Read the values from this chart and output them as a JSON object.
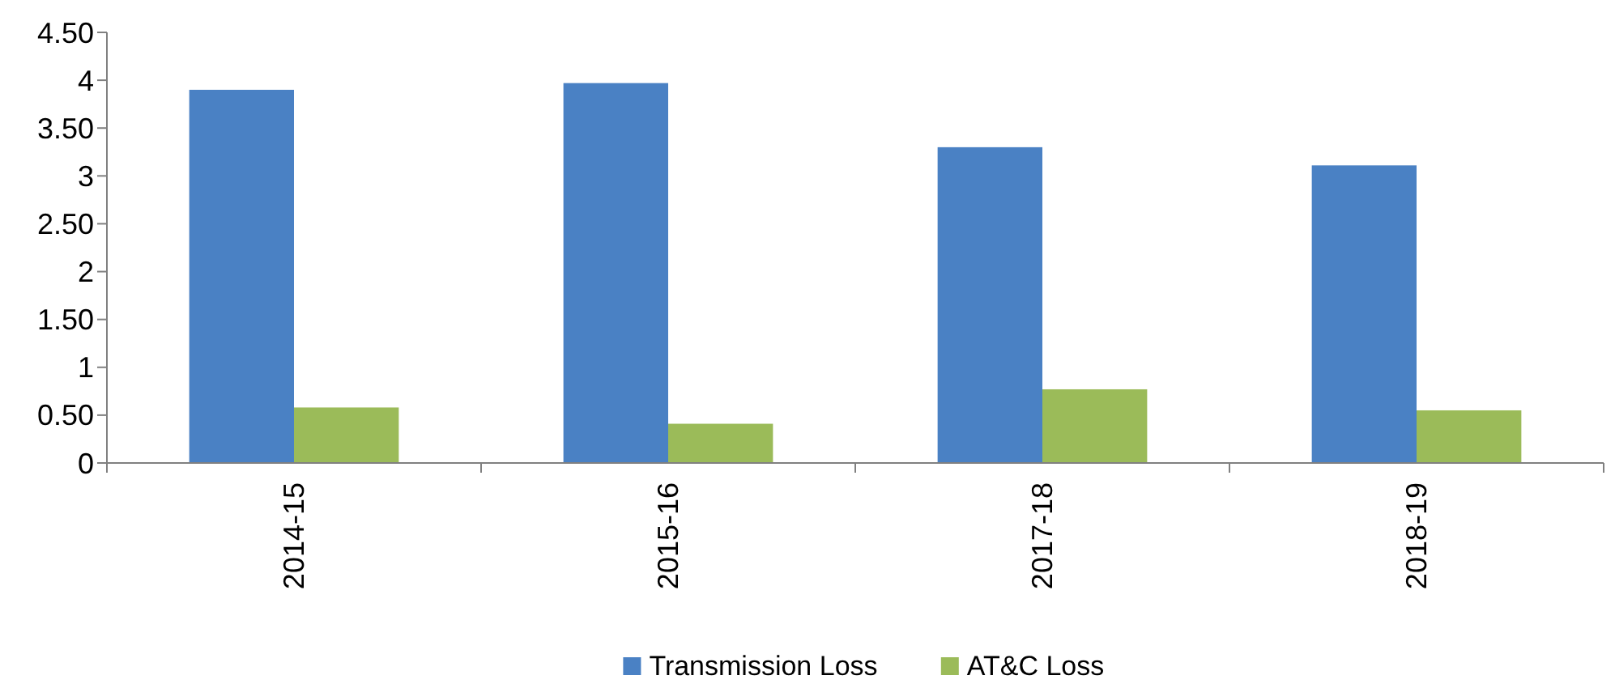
{
  "chart_data": {
    "type": "bar",
    "categories": [
      "2014-15",
      "2015-16",
      "2017-18",
      "2018-19"
    ],
    "series": [
      {
        "name": "Transmission Loss",
        "color": "#4a81c4",
        "values": [
          3.9,
          3.97,
          3.3,
          3.11
        ]
      },
      {
        "name": "AT&C Loss",
        "color": "#9bbb59",
        "values": [
          0.58,
          0.41,
          0.77,
          0.55
        ]
      }
    ],
    "ylim": [
      0,
      4.5
    ],
    "yticks": [
      0,
      {
        "value": 0.5,
        "label": "0.50"
      },
      1,
      {
        "value": 1.5,
        "label": "1.50"
      },
      2,
      {
        "value": 2.5,
        "label": "2.50"
      },
      3,
      {
        "value": 3.5,
        "label": "3.50"
      },
      4,
      {
        "value": 4.5,
        "label": "4.50"
      }
    ],
    "grid": false,
    "legend": "bottom"
  }
}
